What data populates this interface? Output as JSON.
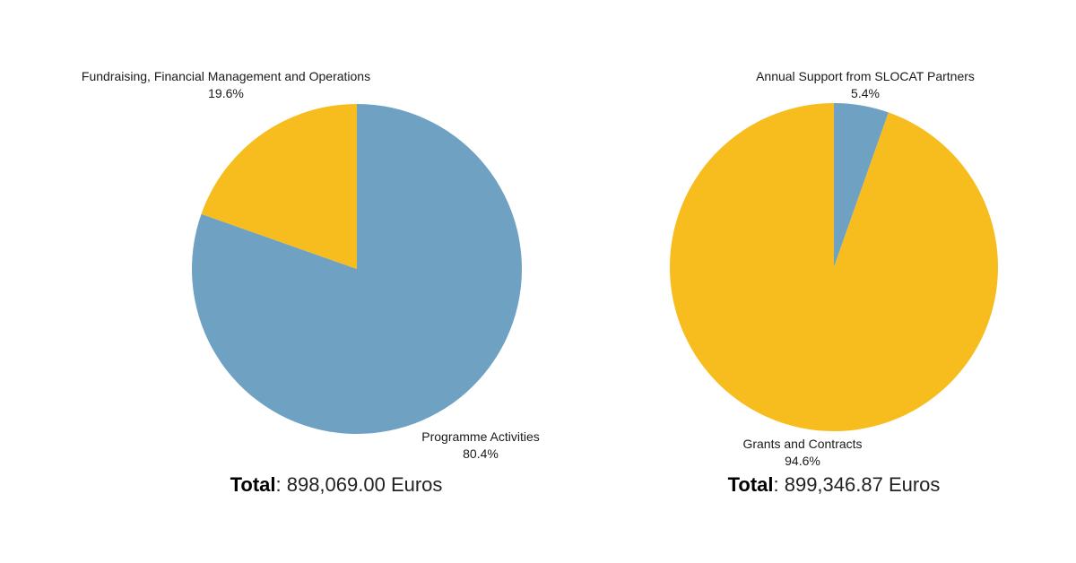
{
  "colors": {
    "blue": "#6fa1c3",
    "yellow": "#f7bd1e"
  },
  "chart_data": [
    {
      "type": "pie",
      "slices": [
        {
          "label": "Programme Activities",
          "value": 80.4,
          "display": "80.4%",
          "color": "#6fa1c3"
        },
        {
          "label": "Fundraising, Financial Management and Operations",
          "value": 19.6,
          "display": "19.6%",
          "color": "#f7bd1e"
        }
      ],
      "total_label": "Total",
      "total_value": ": 898,069.00 Euros"
    },
    {
      "type": "pie",
      "slices": [
        {
          "label": "Annual Support from SLOCAT Partners",
          "value": 5.4,
          "display": "5.4%",
          "color": "#6fa1c3"
        },
        {
          "label": "Grants and Contracts",
          "value": 94.6,
          "display": "94.6%",
          "color": "#f7bd1e"
        }
      ],
      "total_label": "Total",
      "total_value": ": 899,346.87 Euros"
    }
  ]
}
